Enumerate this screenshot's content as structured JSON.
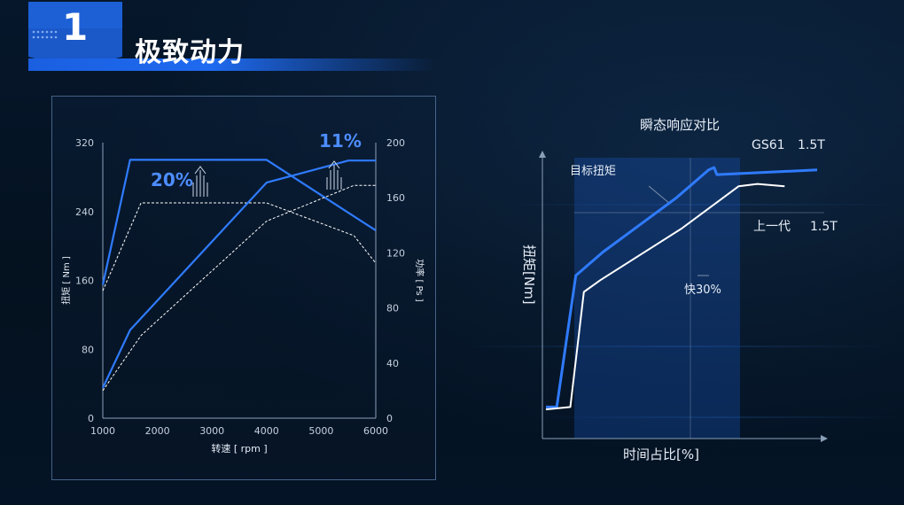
{
  "header": {
    "section_number": "1",
    "title": "极致动力"
  },
  "colors": {
    "accent": "#1f6af0",
    "line_blue": "#2f7bff",
    "dashed": "#ffffff",
    "axis": "#8aa0b8"
  },
  "chart_data": [
    {
      "type": "line",
      "x": [
        1000,
        1500,
        4000,
        6000
      ],
      "xlabel": "转速 [ rpm ]",
      "x_ticks": [
        "1000",
        "2000",
        "3000",
        "4000",
        "5000",
        "6000"
      ],
      "xlim": [
        1000,
        6000
      ],
      "ylabel_left": "扭矩 [ Nm ]",
      "ylabel_right": "功率 [ Ps ]",
      "left_ticks": [
        "0",
        "80",
        "160",
        "240",
        "320"
      ],
      "right_ticks": [
        "0",
        "40",
        "80",
        "120",
        "160",
        "200"
      ],
      "ylim_left": [
        0,
        320
      ],
      "ylim_right": [
        0,
        200
      ],
      "grid": false,
      "series": [
        {
          "axis": "left",
          "style": "solid",
          "x": [
            1000,
            1500,
            4000,
            6000
          ],
          "values": [
            155,
            300,
            300,
            218
          ]
        },
        {
          "axis": "left",
          "style": "dashed",
          "x": [
            1000,
            1700,
            4000,
            5600,
            6000
          ],
          "values": [
            148,
            250,
            250,
            212,
            180
          ]
        },
        {
          "axis": "right",
          "style": "solid",
          "x": [
            1000,
            1500,
            4000,
            5500,
            6000
          ],
          "values": [
            22,
            64,
            171,
            187,
            187
          ]
        },
        {
          "axis": "right",
          "style": "dashed",
          "x": [
            1000,
            1700,
            4000,
            5600,
            6000
          ],
          "values": [
            20,
            60,
            143,
            169,
            169
          ]
        }
      ],
      "annotations": {
        "torque_gain": "20%",
        "power_gain": "11%"
      }
    },
    {
      "type": "line",
      "title": "瞬态响应对比",
      "xlabel": "时间占比[%]",
      "ylabel": "扭矩[Nm]",
      "grid": false,
      "series": [
        {
          "name": "GS61 1.5T",
          "style": "solid",
          "x": [
            0,
            4,
            11,
            21,
            48,
            60,
            62,
            63,
            100
          ],
          "values": [
            4,
            4,
            60,
            70,
            93,
            105,
            106,
            103,
            105
          ]
        },
        {
          "name": "上一代 1.5T",
          "style": "solid",
          "x": [
            0,
            9,
            14,
            20,
            50,
            71,
            78,
            88
          ],
          "values": [
            3,
            4,
            53,
            58,
            80,
            98,
            99,
            98
          ]
        }
      ],
      "labels": {
        "target": "目标扭矩",
        "faster": "快30%",
        "series_new_line1": "GS61",
        "series_new_line2": "1.5T",
        "series_old_line1": "上一代",
        "series_old_line2": "1.5T"
      }
    }
  ]
}
